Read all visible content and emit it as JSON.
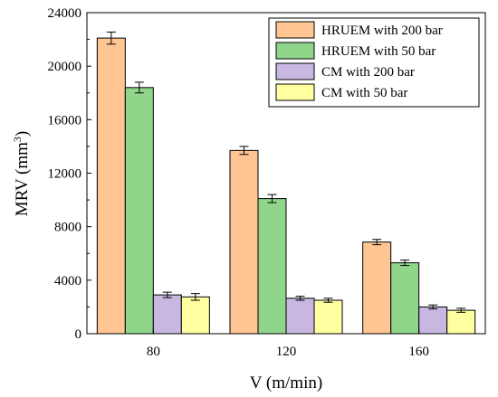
{
  "chart_data": {
    "type": "bar",
    "categories": [
      "80",
      "120",
      "160"
    ],
    "series": [
      {
        "name": "HRUEM with 200 bar",
        "color": "#FFC592",
        "values": [
          22100,
          13700,
          6850
        ],
        "errors": [
          450,
          300,
          200
        ]
      },
      {
        "name": "HRUEM with 50 bar",
        "color": "#8FD68A",
        "values": [
          18400,
          10100,
          5300
        ],
        "errors": [
          400,
          300,
          200
        ]
      },
      {
        "name": "CM with 200 bar",
        "color": "#C8B7E0",
        "values": [
          2900,
          2650,
          2000
        ],
        "errors": [
          200,
          150,
          150
        ]
      },
      {
        "name": "CM with 50 bar",
        "color": "#FFFFA0",
        "values": [
          2750,
          2500,
          1750
        ],
        "errors": [
          250,
          150,
          150
        ]
      }
    ],
    "xlabel": "V (m/min)",
    "ylabel_main": "MRV (mm",
    "ylabel_sup": "3",
    "ylabel_end": ")",
    "ylim": [
      0,
      24000
    ],
    "yticks": [
      "0",
      "4000",
      "8000",
      "12000",
      "16000",
      "20000",
      "24000"
    ],
    "ytick_values": [
      0,
      4000,
      8000,
      12000,
      16000,
      20000,
      24000
    ],
    "legend_position": "top-right",
    "grid": false
  }
}
